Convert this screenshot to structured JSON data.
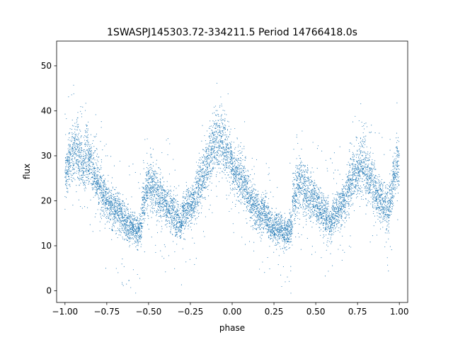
{
  "chart_data": {
    "type": "scatter",
    "title": "1SWASPJ145303.72-334211.5 Period 14766418.0s",
    "xlabel": "phase",
    "ylabel": "flux",
    "xlim": [
      -1.05,
      1.05
    ],
    "ylim": [
      -2.6,
      55.5
    ],
    "x_ticks": [
      -1.0,
      -0.75,
      -0.5,
      -0.25,
      0.0,
      0.25,
      0.5,
      0.75,
      1.0
    ],
    "x_tick_labels": [
      "−1.00",
      "−0.75",
      "−0.50",
      "−0.25",
      "0.00",
      "0.25",
      "0.50",
      "0.75",
      "1.00"
    ],
    "y_ticks": [
      0,
      10,
      20,
      30,
      40,
      50
    ],
    "y_tick_labels": [
      "0",
      "10",
      "20",
      "30",
      "40",
      "50"
    ],
    "grid": false,
    "marker_color": "#1f77b4",
    "series": [
      {
        "phase": [
          -0.99,
          -0.97,
          -0.95,
          -0.93,
          -0.91,
          -0.89,
          -0.87,
          -0.85,
          -0.83,
          -0.81,
          -0.79,
          -0.77,
          -0.75,
          -0.73,
          -0.71,
          -0.69,
          -0.67,
          -0.65,
          -0.63,
          -0.61,
          -0.59,
          -0.57,
          -0.55,
          -0.53,
          -0.51,
          -0.49,
          -0.47,
          -0.45,
          -0.43,
          -0.41,
          -0.39,
          -0.37,
          -0.35,
          -0.33,
          -0.31,
          -0.29,
          -0.27,
          -0.25,
          -0.23,
          -0.21,
          -0.19,
          -0.17,
          -0.15,
          -0.13,
          -0.11,
          -0.09,
          -0.07,
          -0.05,
          -0.03,
          -0.01,
          0.01,
          0.03,
          0.05,
          0.07,
          0.09,
          0.11,
          0.13,
          0.15,
          0.17,
          0.19,
          0.21,
          0.23,
          0.25,
          0.27,
          0.29,
          0.31,
          0.33,
          0.35,
          0.37,
          0.39,
          0.41,
          0.43,
          0.45,
          0.47,
          0.49,
          0.51,
          0.53,
          0.55,
          0.57,
          0.59,
          0.61,
          0.63,
          0.65,
          0.67,
          0.69,
          0.71,
          0.73,
          0.75,
          0.77,
          0.79,
          0.81,
          0.83,
          0.85,
          0.87,
          0.89,
          0.91,
          0.93,
          0.95,
          0.97,
          0.99
        ],
        "flux_mean": [
          27,
          29,
          31,
          32,
          30,
          28,
          30,
          29,
          26,
          25,
          23,
          21,
          20,
          19,
          18,
          18,
          17,
          16,
          15,
          14,
          14,
          13,
          14,
          20,
          23,
          24,
          23,
          22,
          21,
          20,
          19,
          18,
          17,
          16,
          15,
          17,
          18,
          19,
          20,
          22,
          24,
          26,
          28,
          30,
          32,
          33,
          34,
          33,
          31,
          29,
          27,
          26,
          25,
          24,
          22,
          20,
          19,
          18,
          17,
          17,
          16,
          15,
          14,
          14,
          14,
          13,
          13,
          14,
          20,
          23,
          24,
          23,
          22,
          21,
          20,
          19,
          18,
          17,
          16,
          15,
          17,
          18,
          19,
          20,
          22,
          24,
          26,
          27,
          28,
          29,
          26,
          25,
          23,
          21,
          20,
          19,
          18,
          21,
          25,
          28
        ],
        "flux_spread": [
          5,
          5,
          6,
          6,
          6,
          5,
          6,
          5,
          5,
          5,
          5,
          4,
          4,
          4,
          4,
          4,
          4,
          4,
          4,
          3,
          3,
          3,
          3,
          5,
          5,
          5,
          5,
          5,
          5,
          4,
          4,
          4,
          4,
          4,
          3,
          4,
          4,
          4,
          4,
          5,
          5,
          5,
          6,
          6,
          6,
          6,
          6,
          6,
          5,
          5,
          5,
          5,
          5,
          4,
          4,
          4,
          4,
          4,
          4,
          4,
          4,
          3,
          3,
          3,
          3,
          3,
          3,
          3,
          5,
          5,
          5,
          5,
          5,
          5,
          4,
          4,
          4,
          4,
          4,
          3,
          4,
          4,
          4,
          4,
          5,
          5,
          5,
          5,
          6,
          6,
          5,
          5,
          5,
          4,
          4,
          4,
          4,
          4,
          5,
          6
        ]
      }
    ]
  }
}
